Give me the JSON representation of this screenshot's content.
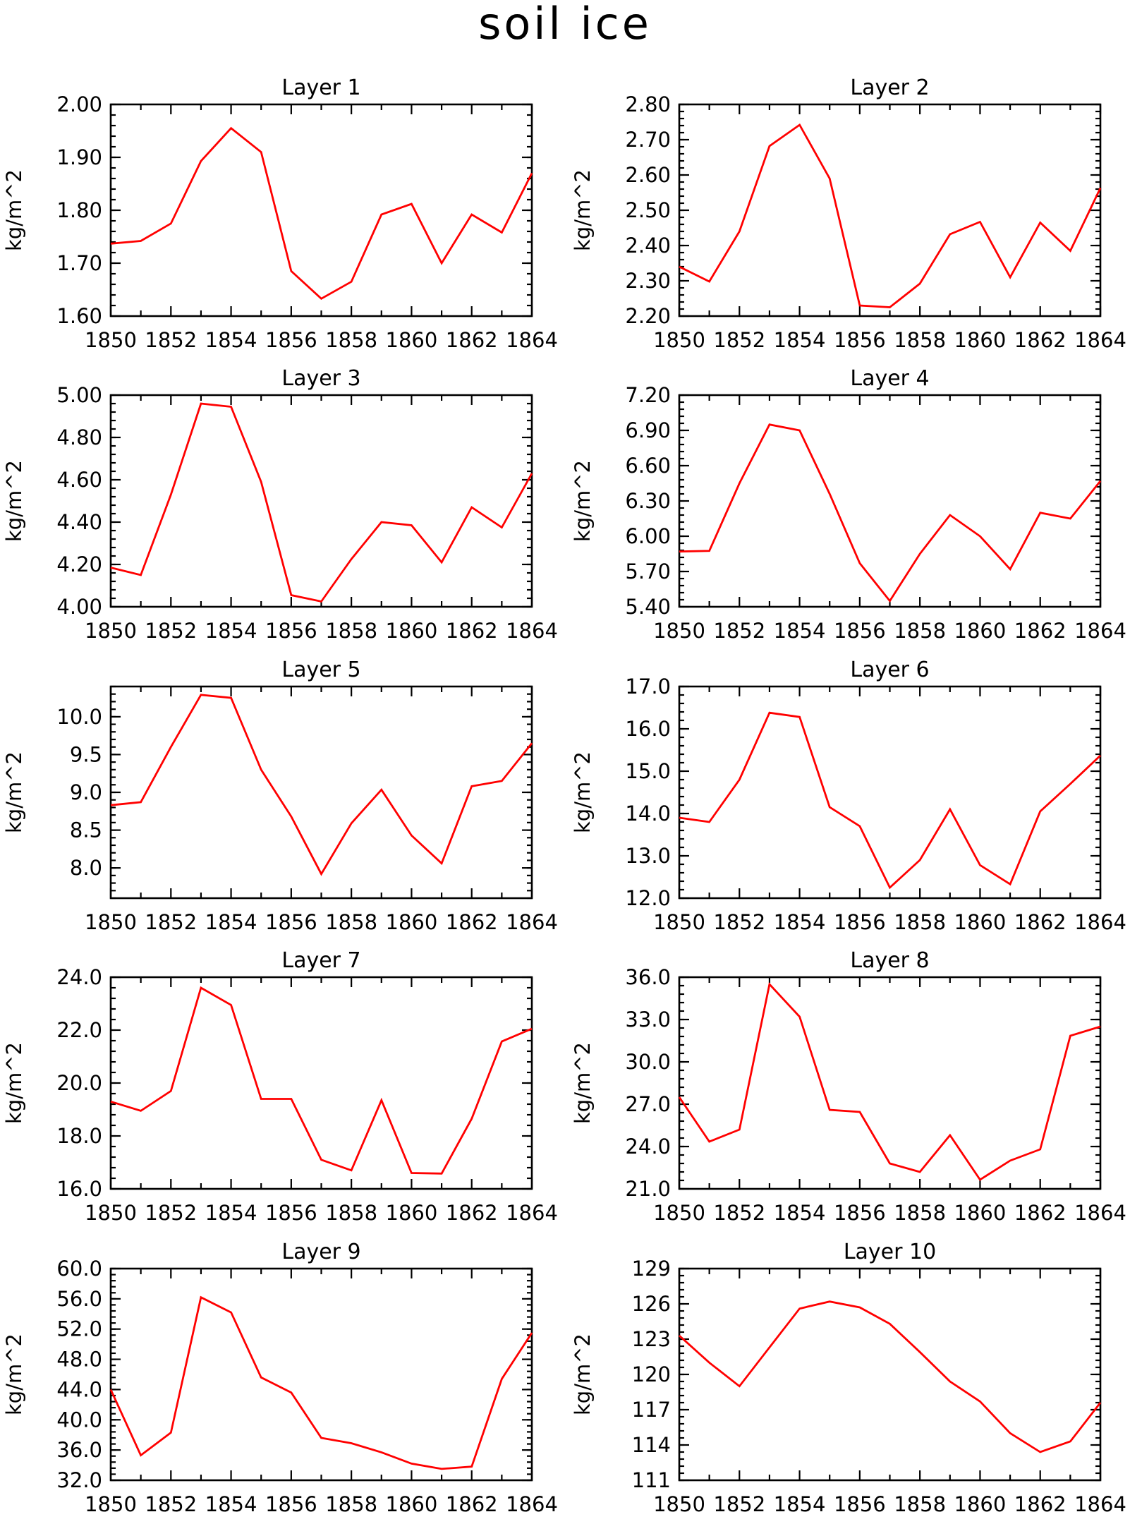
{
  "figure_title": "soil ice",
  "chart_data": [
    {
      "type": "line",
      "title": "Layer 1",
      "ylabel": "kg/m^2",
      "x": [
        1850,
        1851,
        1852,
        1853,
        1854,
        1855,
        1856,
        1857,
        1858,
        1859,
        1860,
        1861,
        1862,
        1863,
        1864
      ],
      "xlim": [
        1850,
        1864
      ],
      "xticks": [
        1850,
        1852,
        1854,
        1856,
        1858,
        1860,
        1862,
        1864
      ],
      "xtick_labels": [
        "1850",
        "1852",
        "1854",
        "1856",
        "1858",
        "1860",
        "1862",
        "1864"
      ],
      "ylim": [
        1.6,
        2.0
      ],
      "yticks": [
        1.6,
        1.7,
        1.8,
        1.9,
        2.0
      ],
      "ytick_labels": [
        "1.60",
        "1.70",
        "1.80",
        "1.90",
        "2.00"
      ],
      "series": [
        {
          "color": "#ff0000",
          "values": [
            1.737,
            1.742,
            1.775,
            1.893,
            1.955,
            1.91,
            1.685,
            1.633,
            1.665,
            1.792,
            1.812,
            1.7,
            1.792,
            1.758,
            1.87
          ]
        }
      ]
    },
    {
      "type": "line",
      "title": "Layer 2",
      "ylabel": "kg/m^2",
      "x": [
        1850,
        1851,
        1852,
        1853,
        1854,
        1855,
        1856,
        1857,
        1858,
        1859,
        1860,
        1861,
        1862,
        1863,
        1864
      ],
      "xlim": [
        1850,
        1864
      ],
      "xticks": [
        1850,
        1852,
        1854,
        1856,
        1858,
        1860,
        1862,
        1864
      ],
      "xtick_labels": [
        "1850",
        "1852",
        "1854",
        "1856",
        "1858",
        "1860",
        "1862",
        "1864"
      ],
      "ylim": [
        2.2,
        2.8
      ],
      "yticks": [
        2.2,
        2.3,
        2.4,
        2.5,
        2.6,
        2.7,
        2.8
      ],
      "ytick_labels": [
        "2.20",
        "2.30",
        "2.40",
        "2.50",
        "2.60",
        "2.70",
        "2.80"
      ],
      "series": [
        {
          "color": "#ff0000",
          "values": [
            2.34,
            2.298,
            2.44,
            2.682,
            2.742,
            2.59,
            2.23,
            2.225,
            2.292,
            2.432,
            2.467,
            2.31,
            2.465,
            2.385,
            2.563
          ]
        }
      ]
    },
    {
      "type": "line",
      "title": "Layer 3",
      "ylabel": "kg/m^2",
      "x": [
        1850,
        1851,
        1852,
        1853,
        1854,
        1855,
        1856,
        1857,
        1858,
        1859,
        1860,
        1861,
        1862,
        1863,
        1864
      ],
      "xlim": [
        1850,
        1864
      ],
      "xticks": [
        1850,
        1852,
        1854,
        1856,
        1858,
        1860,
        1862,
        1864
      ],
      "xtick_labels": [
        "1850",
        "1852",
        "1854",
        "1856",
        "1858",
        "1860",
        "1862",
        "1864"
      ],
      "ylim": [
        4.0,
        5.0
      ],
      "yticks": [
        4.0,
        4.2,
        4.4,
        4.6,
        4.8,
        5.0
      ],
      "ytick_labels": [
        "4.00",
        "4.20",
        "4.40",
        "4.60",
        "4.80",
        "5.00"
      ],
      "series": [
        {
          "color": "#ff0000",
          "values": [
            4.185,
            4.15,
            4.53,
            4.96,
            4.945,
            4.59,
            4.055,
            4.025,
            4.225,
            4.4,
            4.385,
            4.21,
            4.47,
            4.375,
            4.63
          ]
        }
      ]
    },
    {
      "type": "line",
      "title": "Layer 4",
      "ylabel": "kg/m^2",
      "x": [
        1850,
        1851,
        1852,
        1853,
        1854,
        1855,
        1856,
        1857,
        1858,
        1859,
        1860,
        1861,
        1862,
        1863,
        1864
      ],
      "xlim": [
        1850,
        1864
      ],
      "xticks": [
        1850,
        1852,
        1854,
        1856,
        1858,
        1860,
        1862,
        1864
      ],
      "xtick_labels": [
        "1850",
        "1852",
        "1854",
        "1856",
        "1858",
        "1860",
        "1862",
        "1864"
      ],
      "ylim": [
        5.4,
        7.2
      ],
      "yticks": [
        5.4,
        5.7,
        6.0,
        6.3,
        6.6,
        6.9,
        7.2
      ],
      "ytick_labels": [
        "5.40",
        "5.70",
        "6.00",
        "6.30",
        "6.60",
        "6.90",
        "7.20"
      ],
      "series": [
        {
          "color": "#ff0000",
          "values": [
            5.87,
            5.875,
            6.45,
            6.95,
            6.9,
            6.36,
            5.77,
            5.45,
            5.85,
            6.18,
            6.0,
            5.72,
            6.2,
            6.15,
            6.47
          ]
        }
      ]
    },
    {
      "type": "line",
      "title": "Layer 5",
      "ylabel": "kg/m^2",
      "x": [
        1850,
        1851,
        1852,
        1853,
        1854,
        1855,
        1856,
        1857,
        1858,
        1859,
        1860,
        1861,
        1862,
        1863,
        1864
      ],
      "xlim": [
        1850,
        1864
      ],
      "xticks": [
        1850,
        1852,
        1854,
        1856,
        1858,
        1860,
        1862,
        1864
      ],
      "xtick_labels": [
        "1850",
        "1852",
        "1854",
        "1856",
        "1858",
        "1860",
        "1862",
        "1864"
      ],
      "ylim": [
        7.6,
        10.4
      ],
      "yticks": [
        8.0,
        8.5,
        9.0,
        9.5,
        10.0
      ],
      "ytick_labels": [
        "8.0",
        "8.5",
        "9.0",
        "9.5",
        "10.0"
      ],
      "series": [
        {
          "color": "#ff0000",
          "values": [
            8.83,
            8.87,
            9.6,
            10.29,
            10.25,
            9.3,
            8.68,
            7.92,
            8.59,
            9.035,
            8.43,
            8.06,
            9.08,
            9.15,
            9.65
          ]
        }
      ]
    },
    {
      "type": "line",
      "title": "Layer 6",
      "ylabel": "kg/m^2",
      "x": [
        1850,
        1851,
        1852,
        1853,
        1854,
        1855,
        1856,
        1857,
        1858,
        1859,
        1860,
        1861,
        1862,
        1863,
        1864
      ],
      "xlim": [
        1850,
        1864
      ],
      "xticks": [
        1850,
        1852,
        1854,
        1856,
        1858,
        1860,
        1862,
        1864
      ],
      "xtick_labels": [
        "1850",
        "1852",
        "1854",
        "1856",
        "1858",
        "1860",
        "1862",
        "1864"
      ],
      "ylim": [
        12.0,
        17.0
      ],
      "yticks": [
        12.0,
        13.0,
        14.0,
        15.0,
        16.0,
        17.0
      ],
      "ytick_labels": [
        "12.0",
        "13.0",
        "14.0",
        "15.0",
        "16.0",
        "17.0"
      ],
      "series": [
        {
          "color": "#ff0000",
          "values": [
            13.9,
            13.8,
            14.8,
            16.38,
            16.28,
            14.15,
            13.7,
            12.25,
            12.9,
            14.1,
            12.78,
            12.33,
            14.05,
            14.7,
            15.37
          ]
        }
      ]
    },
    {
      "type": "line",
      "title": "Layer 7",
      "ylabel": "kg/m^2",
      "x": [
        1850,
        1851,
        1852,
        1853,
        1854,
        1855,
        1856,
        1857,
        1858,
        1859,
        1860,
        1861,
        1862,
        1863,
        1864
      ],
      "xlim": [
        1850,
        1864
      ],
      "xticks": [
        1850,
        1852,
        1854,
        1856,
        1858,
        1860,
        1862,
        1864
      ],
      "xtick_labels": [
        "1850",
        "1852",
        "1854",
        "1856",
        "1858",
        "1860",
        "1862",
        "1864"
      ],
      "ylim": [
        16.0,
        24.0
      ],
      "yticks": [
        16.0,
        18.0,
        20.0,
        22.0,
        24.0
      ],
      "ytick_labels": [
        "16.0",
        "18.0",
        "20.0",
        "22.0",
        "24.0"
      ],
      "series": [
        {
          "color": "#ff0000",
          "values": [
            19.3,
            18.95,
            19.7,
            23.6,
            22.95,
            19.4,
            19.4,
            17.1,
            16.7,
            19.35,
            16.6,
            16.58,
            18.65,
            21.57,
            22.05
          ]
        }
      ]
    },
    {
      "type": "line",
      "title": "Layer 8",
      "ylabel": "kg/m^2",
      "x": [
        1850,
        1851,
        1852,
        1853,
        1854,
        1855,
        1856,
        1857,
        1858,
        1859,
        1860,
        1861,
        1862,
        1863,
        1864
      ],
      "xlim": [
        1850,
        1864
      ],
      "xticks": [
        1850,
        1852,
        1854,
        1856,
        1858,
        1860,
        1862,
        1864
      ],
      "xtick_labels": [
        "1850",
        "1852",
        "1854",
        "1856",
        "1858",
        "1860",
        "1862",
        "1864"
      ],
      "ylim": [
        21.0,
        36.0
      ],
      "yticks": [
        21.0,
        24.0,
        27.0,
        30.0,
        33.0,
        36.0
      ],
      "ytick_labels": [
        "21.0",
        "24.0",
        "27.0",
        "30.0",
        "33.0",
        "36.0"
      ],
      "series": [
        {
          "color": "#ff0000",
          "values": [
            27.5,
            24.35,
            25.2,
            35.5,
            33.2,
            26.6,
            26.45,
            22.8,
            22.2,
            24.8,
            21.65,
            23.0,
            23.8,
            31.85,
            32.5
          ]
        }
      ]
    },
    {
      "type": "line",
      "title": "Layer 9",
      "ylabel": "kg/m^2",
      "x": [
        1850,
        1851,
        1852,
        1853,
        1854,
        1855,
        1856,
        1857,
        1858,
        1859,
        1860,
        1861,
        1862,
        1863,
        1864
      ],
      "xlim": [
        1850,
        1864
      ],
      "xticks": [
        1850,
        1852,
        1854,
        1856,
        1858,
        1860,
        1862,
        1864
      ],
      "xtick_labels": [
        "1850",
        "1852",
        "1854",
        "1856",
        "1858",
        "1860",
        "1862",
        "1864"
      ],
      "ylim": [
        32.0,
        60.0
      ],
      "yticks": [
        32.0,
        36.0,
        40.0,
        44.0,
        48.0,
        52.0,
        56.0,
        60.0
      ],
      "ytick_labels": [
        "32.0",
        "36.0",
        "40.0",
        "44.0",
        "48.0",
        "52.0",
        "56.0",
        "60.0"
      ],
      "series": [
        {
          "color": "#ff0000",
          "values": [
            44.0,
            35.3,
            38.3,
            56.2,
            54.2,
            45.6,
            43.6,
            37.6,
            36.9,
            35.7,
            34.2,
            33.5,
            33.8,
            45.4,
            51.5
          ]
        }
      ]
    },
    {
      "type": "line",
      "title": "Layer 10",
      "ylabel": "kg/m^2",
      "x": [
        1850,
        1851,
        1852,
        1853,
        1854,
        1855,
        1856,
        1857,
        1858,
        1859,
        1860,
        1861,
        1862,
        1863,
        1864
      ],
      "xlim": [
        1850,
        1864
      ],
      "xticks": [
        1850,
        1852,
        1854,
        1856,
        1858,
        1860,
        1862,
        1864
      ],
      "xtick_labels": [
        "1850",
        "1852",
        "1854",
        "1856",
        "1858",
        "1860",
        "1862",
        "1864"
      ],
      "ylim": [
        111,
        129
      ],
      "yticks": [
        111,
        114,
        117,
        120,
        123,
        126,
        129
      ],
      "ytick_labels": [
        "111",
        "114",
        "117",
        "120",
        "123",
        "126",
        "129"
      ],
      "series": [
        {
          "color": "#ff0000",
          "values": [
            123.3,
            121.0,
            119.0,
            122.3,
            125.6,
            126.2,
            125.7,
            124.3,
            121.9,
            119.4,
            117.7,
            115.0,
            113.4,
            114.3,
            117.6
          ]
        }
      ]
    }
  ]
}
